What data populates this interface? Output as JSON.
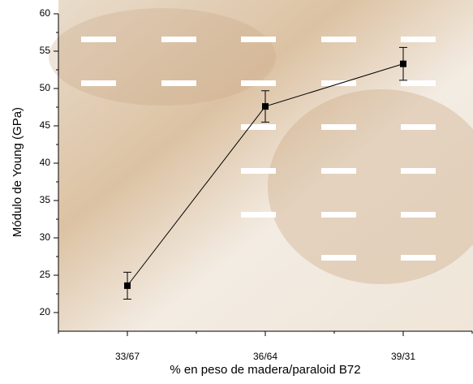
{
  "chart_data": {
    "type": "line",
    "x_label": "% en peso de madera/paraloid B72",
    "y_label": "Módulo de Young (GPa)",
    "categories": [
      "33/67",
      "36/64",
      "39/31"
    ],
    "values": [
      23.6,
      47.6,
      53.3
    ],
    "errors": [
      1.8,
      2.1,
      2.2
    ],
    "color": "#000000",
    "ylim": [
      17.5,
      60
    ],
    "yticks": [
      20,
      25,
      30,
      35,
      40,
      45,
      50,
      55,
      60
    ]
  }
}
